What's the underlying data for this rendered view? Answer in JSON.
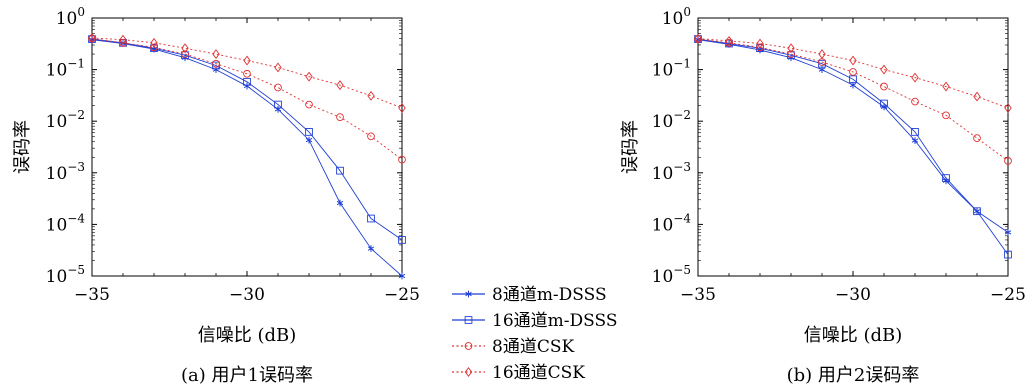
{
  "chart_data": [
    {
      "type": "line",
      "caption": "(a) 用户1误码率",
      "xlabel": "信噪比 (dB)",
      "ylabel": "误码率",
      "xlim": [
        -35,
        -25
      ],
      "ylim": [
        1e-05,
        1
      ],
      "yscale": "log",
      "x_ticks": [
        -35,
        -30,
        -25
      ],
      "x_tick_labels": [
        "−35",
        "−30",
        "−25"
      ],
      "y_ticks": [
        1,
        0.1,
        0.01,
        0.001,
        0.0001,
        1e-05
      ],
      "y_tick_labels": [
        {
          "base": "10",
          "exp": "0"
        },
        {
          "base": "10",
          "exp": "-1"
        },
        {
          "base": "10",
          "exp": "-2"
        },
        {
          "base": "10",
          "exp": "-3"
        },
        {
          "base": "10",
          "exp": "-4"
        },
        {
          "base": "10",
          "exp": "-5"
        }
      ],
      "series": [
        {
          "name": "8通道m-DSSS",
          "color": "#1f3fd6",
          "marker": "star",
          "dash": "solid",
          "x": [
            -35,
            -34,
            -33,
            -32,
            -31,
            -30,
            -29,
            -28,
            -27,
            -26,
            -25
          ],
          "y": [
            0.38,
            0.32,
            0.25,
            0.17,
            0.1,
            0.048,
            0.017,
            0.0043,
            0.00026,
            3.4e-05,
            1e-05
          ]
        },
        {
          "name": "16通道m-DSSS",
          "color": "#1f3fd6",
          "marker": "square",
          "dash": "solid",
          "x": [
            -35,
            -34,
            -33,
            -32,
            -31,
            -30,
            -29,
            -28,
            -27,
            -26,
            -25
          ],
          "y": [
            0.39,
            0.33,
            0.26,
            0.19,
            0.12,
            0.058,
            0.021,
            0.0062,
            0.0011,
            0.00013,
            5e-05
          ]
        },
        {
          "name": "8通道CSK",
          "color": "#e03030",
          "marker": "circle",
          "dash": "dotted",
          "x": [
            -35,
            -34,
            -33,
            -32,
            -31,
            -30,
            -29,
            -28,
            -27,
            -26,
            -25
          ],
          "y": [
            0.4,
            0.33,
            0.27,
            0.2,
            0.13,
            0.083,
            0.045,
            0.021,
            0.012,
            0.0051,
            0.0018
          ]
        },
        {
          "name": "16通道CSK",
          "color": "#e03030",
          "marker": "diamond",
          "dash": "dotted",
          "x": [
            -35,
            -34,
            -33,
            -32,
            -31,
            -30,
            -29,
            -28,
            -27,
            -26,
            -25
          ],
          "y": [
            0.41,
            0.38,
            0.33,
            0.26,
            0.2,
            0.15,
            0.11,
            0.073,
            0.05,
            0.031,
            0.018
          ]
        }
      ]
    },
    {
      "type": "line",
      "caption": "(b) 用户2误码率",
      "xlabel": "信噪比 (dB)",
      "ylabel": "误码率",
      "xlim": [
        -35,
        -25
      ],
      "ylim": [
        1e-05,
        1
      ],
      "yscale": "log",
      "x_ticks": [
        -35,
        -30,
        -25
      ],
      "x_tick_labels": [
        "−35",
        "−30",
        "−25"
      ],
      "y_ticks": [
        1,
        0.1,
        0.01,
        0.001,
        0.0001,
        1e-05
      ],
      "y_tick_labels": [
        {
          "base": "10",
          "exp": "0"
        },
        {
          "base": "10",
          "exp": "-1"
        },
        {
          "base": "10",
          "exp": "-2"
        },
        {
          "base": "10",
          "exp": "-3"
        },
        {
          "base": "10",
          "exp": "-4"
        },
        {
          "base": "10",
          "exp": "-5"
        }
      ],
      "series": [
        {
          "name": "8通道m-DSSS",
          "color": "#1f3fd6",
          "marker": "star",
          "dash": "solid",
          "x": [
            -35,
            -34,
            -33,
            -32,
            -31,
            -30,
            -29,
            -28,
            -27,
            -26,
            -25
          ],
          "y": [
            0.38,
            0.31,
            0.24,
            0.17,
            0.1,
            0.05,
            0.019,
            0.0042,
            0.0007,
            0.00018,
            7e-05
          ]
        },
        {
          "name": "16通道m-DSSS",
          "color": "#1f3fd6",
          "marker": "square",
          "dash": "solid",
          "x": [
            -35,
            -34,
            -33,
            -32,
            -31,
            -30,
            -29,
            -28,
            -27,
            -26,
            -25
          ],
          "y": [
            0.39,
            0.32,
            0.26,
            0.19,
            0.13,
            0.065,
            0.022,
            0.0062,
            0.00079,
            0.00018,
            2.6e-05
          ]
        },
        {
          "name": "8通道CSK",
          "color": "#e03030",
          "marker": "circle",
          "dash": "dotted",
          "x": [
            -35,
            -34,
            -33,
            -32,
            -31,
            -30,
            -29,
            -28,
            -27,
            -26,
            -25
          ],
          "y": [
            0.39,
            0.33,
            0.27,
            0.2,
            0.14,
            0.09,
            0.047,
            0.024,
            0.013,
            0.0047,
            0.0017
          ]
        },
        {
          "name": "16通道CSK",
          "color": "#e03030",
          "marker": "diamond",
          "dash": "dotted",
          "x": [
            -35,
            -34,
            -33,
            -32,
            -31,
            -30,
            -29,
            -28,
            -27,
            -26,
            -25
          ],
          "y": [
            0.4,
            0.36,
            0.32,
            0.26,
            0.2,
            0.15,
            0.1,
            0.07,
            0.047,
            0.03,
            0.018
          ]
        }
      ]
    }
  ],
  "legend": {
    "placement": "between panels, bottom",
    "entries": [
      {
        "label": "8通道m-DSSS",
        "color": "#1f3fd6",
        "marker": "star",
        "dash": "solid"
      },
      {
        "label": "16通道m-DSSS",
        "color": "#1f3fd6",
        "marker": "square",
        "dash": "solid"
      },
      {
        "label": "8通道CSK",
        "color": "#e03030",
        "marker": "circle",
        "dash": "dotted"
      },
      {
        "label": "16通道CSK",
        "color": "#e03030",
        "marker": "diamond",
        "dash": "dotted"
      }
    ]
  }
}
